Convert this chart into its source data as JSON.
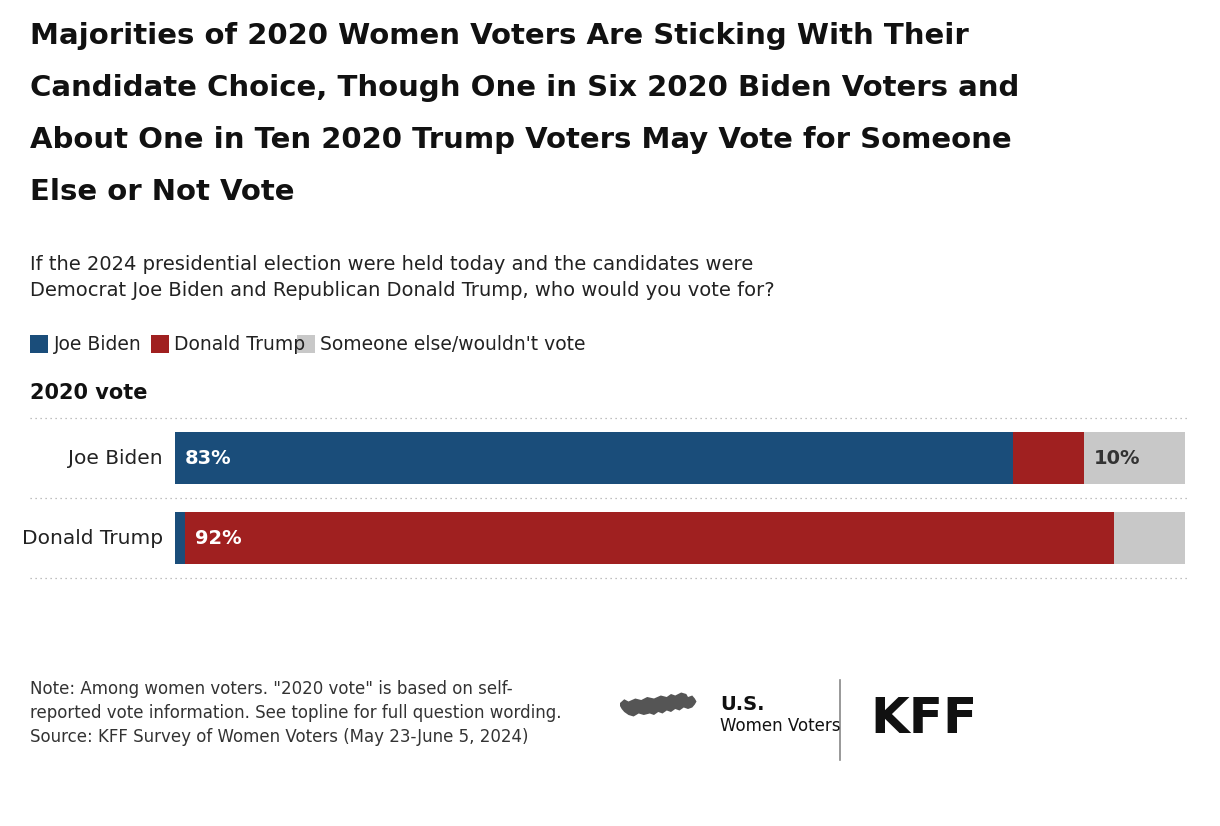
{
  "title_lines": [
    "Majorities of 2020 Women Voters Are Sticking With Their",
    "Candidate Choice, Though One in Six 2020 Biden Voters and",
    "About One in Ten 2020 Trump Voters May Vote for Someone",
    "Else or Not Vote"
  ],
  "subtitle_lines": [
    "If the 2024 presidential election were held today and the candidates were",
    "Democrat Joe Biden and Republican Donald Trump, who would you vote for?"
  ],
  "section_label": "2020 vote",
  "rows": [
    "Joe Biden",
    "Donald Trump"
  ],
  "biden_row": {
    "segments": [
      {
        "pct": 83,
        "color": "#1a4d7a",
        "label": "83%",
        "label_color": "#ffffff"
      },
      {
        "pct": 7,
        "color": "#a02020",
        "label": "",
        "label_color": "#ffffff"
      },
      {
        "pct": 10,
        "color": "#c8c8c8",
        "label": "10%",
        "label_color": "#333333"
      }
    ]
  },
  "trump_row": {
    "segments": [
      {
        "pct": 1,
        "color": "#1a4d7a",
        "label": "",
        "label_color": "#ffffff"
      },
      {
        "pct": 92,
        "color": "#a02020",
        "label": "92%",
        "label_color": "#ffffff"
      },
      {
        "pct": 7,
        "color": "#c8c8c8",
        "label": "",
        "label_color": "#333333"
      }
    ]
  },
  "colors": {
    "biden": "#1a4d7a",
    "trump": "#a02020",
    "other": "#c8c8c8",
    "bg": "#ffffff",
    "text": "#000000",
    "separator": "#aaaaaa"
  },
  "legend_labels": [
    "Joe Biden",
    "Donald Trump",
    "Someone else/wouldn't vote"
  ],
  "legend_colors": [
    "#1a4d7a",
    "#a02020",
    "#c8c8c8"
  ],
  "note_lines": [
    "Note: Among women voters. \"2020 vote\" is based on self-",
    "reported vote information. See topline for full question wording.",
    "Source: KFF Survey of Women Voters (May 23-June 5, 2024)"
  ],
  "kff_label1": "U.S.",
  "kff_label2": "Women Voters",
  "kff_brand": "KFF"
}
